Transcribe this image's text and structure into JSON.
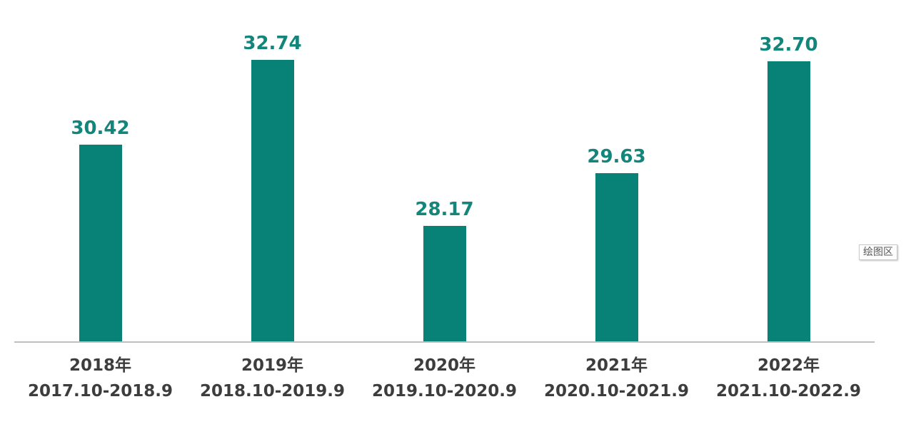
{
  "chart_data": {
    "type": "bar",
    "title": "",
    "xlabel": "",
    "ylabel": "",
    "categories": [
      {
        "year": "2018年",
        "range": "2017.10-2018.9"
      },
      {
        "year": "2019年",
        "range": "2018.10-2019.9"
      },
      {
        "year": "2020年",
        "range": "2019.10-2020.9"
      },
      {
        "year": "2021年",
        "range": "2020.10-2021.9"
      },
      {
        "year": "2022年",
        "range": "2021.10-2022.9"
      }
    ],
    "values": [
      30.42,
      32.74,
      28.17,
      29.63,
      32.7
    ],
    "value_labels": [
      "30.42",
      "32.74",
      "28.17",
      "29.63",
      "32.70"
    ],
    "ylim": [
      25,
      34.2
    ],
    "grid": false,
    "legend": "none",
    "bar_color": "#088176",
    "value_label_color": "#13857a",
    "category_label_color": "#3d3d3d",
    "axis_line_color": "#bfbfbf"
  },
  "overlay": {
    "plot_area_tooltip": "绘图区"
  }
}
